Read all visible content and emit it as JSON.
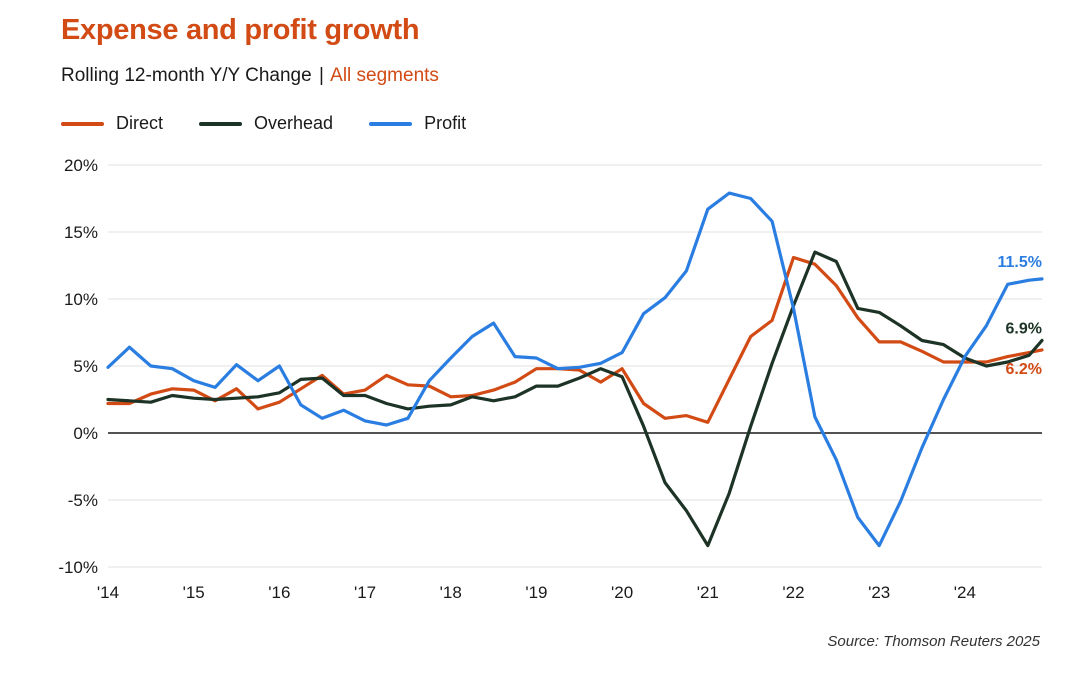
{
  "header": {
    "title": "Expense and profit growth",
    "subtitle_main": "Rolling 12-month Y/Y Change",
    "subtitle_sep": "|",
    "subtitle_accent": "All segments"
  },
  "source": "Source: Thomson Reuters 2025",
  "colors": {
    "direct": "#d24a14",
    "overhead": "#1c3326",
    "profit": "#2a7de1",
    "accent": "#d24a14"
  },
  "chart_data": {
    "type": "line",
    "title": "Expense and profit growth",
    "subtitle": "Rolling 12-month Y/Y Change | All segments",
    "ylim": [
      -10,
      20
    ],
    "yticks": [
      20,
      15,
      10,
      5,
      0,
      -5,
      -10
    ],
    "ytick_labels": [
      "20%",
      "15%",
      "10%",
      "5%",
      "0%",
      "-5%",
      "-10%"
    ],
    "xlim": [
      2014,
      2024.9
    ],
    "xticks": [
      2014,
      2015,
      2016,
      2017,
      2018,
      2019,
      2020,
      2021,
      2022,
      2023,
      2024
    ],
    "xtick_labels": [
      "'14",
      "'15",
      "'16",
      "'17",
      "'18",
      "'19",
      "'20",
      "'21",
      "'22",
      "'23",
      "'24"
    ],
    "grid": true,
    "legend_position": "top-left",
    "series": [
      {
        "name": "Direct",
        "color_key": "direct",
        "end_label": "6.2%",
        "x": [
          2014,
          2014.25,
          2014.5,
          2014.75,
          2015,
          2015.25,
          2015.5,
          2015.75,
          2016,
          2016.25,
          2016.5,
          2016.75,
          2017,
          2017.25,
          2017.5,
          2017.75,
          2018,
          2018.25,
          2018.5,
          2018.75,
          2019,
          2019.25,
          2019.5,
          2019.75,
          2020,
          2020.25,
          2020.5,
          2020.75,
          2021,
          2021.25,
          2021.5,
          2021.75,
          2022,
          2022.25,
          2022.5,
          2022.75,
          2023,
          2023.25,
          2023.5,
          2023.75,
          2024,
          2024.25,
          2024.5,
          2024.75,
          2024.9
        ],
        "y": [
          2.2,
          2.2,
          2.9,
          3.3,
          3.2,
          2.4,
          3.3,
          1.8,
          2.3,
          3.3,
          4.3,
          2.9,
          3.2,
          4.3,
          3.6,
          3.5,
          2.7,
          2.8,
          3.2,
          3.8,
          4.8,
          4.8,
          4.7,
          3.8,
          4.8,
          2.2,
          1.1,
          1.3,
          0.8,
          4.0,
          7.2,
          8.4,
          13.1,
          12.6,
          11.0,
          8.6,
          6.8,
          6.8,
          6.1,
          5.3,
          5.3,
          5.3,
          5.7,
          6.0,
          6.2
        ]
      },
      {
        "name": "Overhead",
        "color_key": "overhead",
        "end_label": "6.9%",
        "x": [
          2014,
          2014.25,
          2014.5,
          2014.75,
          2015,
          2015.25,
          2015.5,
          2015.75,
          2016,
          2016.25,
          2016.5,
          2016.75,
          2017,
          2017.25,
          2017.5,
          2017.75,
          2018,
          2018.25,
          2018.5,
          2018.75,
          2019,
          2019.25,
          2019.5,
          2019.75,
          2020,
          2020.25,
          2020.5,
          2020.75,
          2021,
          2021.25,
          2021.5,
          2021.75,
          2022,
          2022.25,
          2022.5,
          2022.75,
          2023,
          2023.25,
          2023.5,
          2023.75,
          2024,
          2024.25,
          2024.5,
          2024.75,
          2024.9
        ],
        "y": [
          2.5,
          2.4,
          2.3,
          2.8,
          2.6,
          2.5,
          2.6,
          2.7,
          3.0,
          4.0,
          4.1,
          2.8,
          2.8,
          2.2,
          1.8,
          2.0,
          2.1,
          2.7,
          2.4,
          2.7,
          3.5,
          3.5,
          4.1,
          4.8,
          4.2,
          0.5,
          -3.7,
          -5.8,
          -8.4,
          -4.5,
          0.5,
          5.2,
          9.5,
          13.5,
          12.8,
          9.3,
          9.0,
          8.0,
          6.9,
          6.6,
          5.6,
          5.0,
          5.3,
          5.8,
          6.9
        ]
      },
      {
        "name": "Profit",
        "color_key": "profit",
        "end_label": "11.5%",
        "x": [
          2014,
          2014.25,
          2014.5,
          2014.75,
          2015,
          2015.25,
          2015.5,
          2015.75,
          2016,
          2016.25,
          2016.5,
          2016.75,
          2017,
          2017.25,
          2017.5,
          2017.75,
          2018,
          2018.25,
          2018.5,
          2018.75,
          2019,
          2019.25,
          2019.5,
          2019.75,
          2020,
          2020.25,
          2020.5,
          2020.75,
          2021,
          2021.25,
          2021.5,
          2021.75,
          2022,
          2022.25,
          2022.5,
          2022.75,
          2023,
          2023.25,
          2023.5,
          2023.75,
          2024,
          2024.25,
          2024.5,
          2024.75,
          2024.9
        ],
        "y": [
          4.9,
          6.4,
          5.0,
          4.8,
          3.9,
          3.4,
          5.1,
          3.9,
          5.0,
          2.1,
          1.1,
          1.7,
          0.9,
          0.6,
          1.1,
          3.9,
          5.6,
          7.2,
          8.2,
          5.7,
          5.6,
          4.8,
          4.9,
          5.2,
          6.0,
          8.9,
          10.1,
          12.1,
          16.7,
          17.9,
          17.5,
          15.8,
          9.3,
          1.2,
          -2.0,
          -6.3,
          -8.4,
          -5.1,
          -1.1,
          2.5,
          5.7,
          8.0,
          11.1,
          11.4,
          11.5
        ]
      }
    ]
  }
}
